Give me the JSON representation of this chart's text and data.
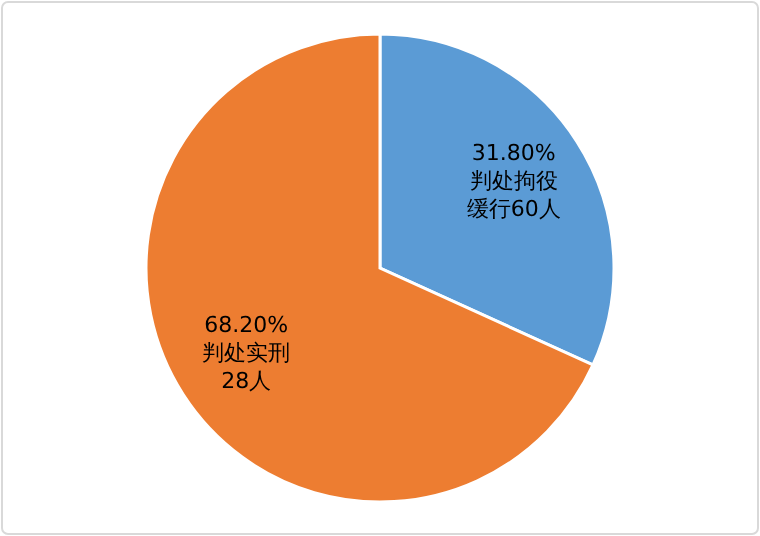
{
  "chart_data": {
    "type": "pie",
    "categories": [
      "判处拘役缓行60人",
      "判处实刑28人"
    ],
    "values": [
      31.8,
      68.2
    ],
    "value_labels": [
      "31.80%",
      "68.20%"
    ],
    "colors": [
      "#5b9bd5",
      "#ed7d31"
    ]
  }
}
